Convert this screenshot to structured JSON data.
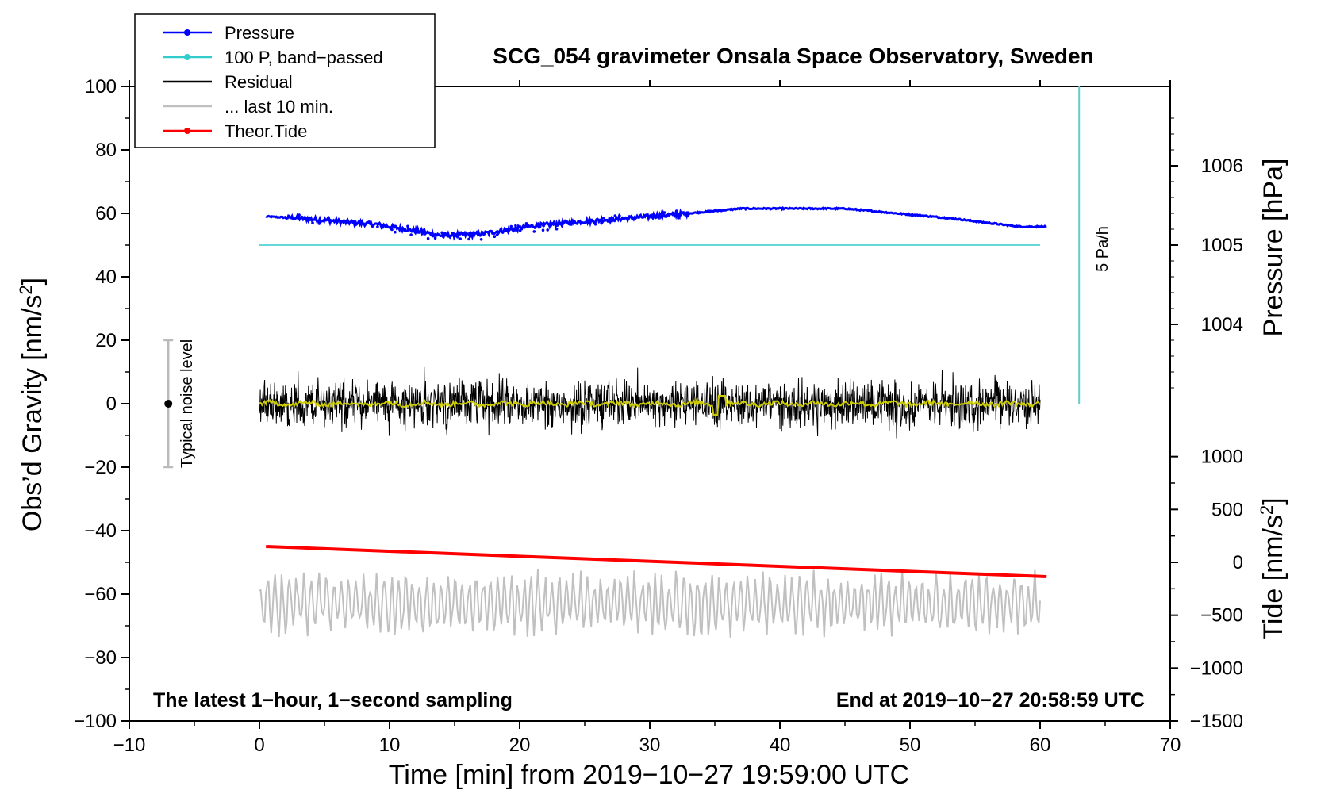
{
  "chart_data": {
    "type": "line",
    "title": "SCG_054 gravimeter Onsala Space Observatory, Sweden",
    "xlabel": "Time [min] from 2019−10−27 19:59:00 UTC",
    "ylabel_main": "Obs’d Gravity [nm/s",
    "ylabel_main_sup": "2",
    "ylabel_main_end": "]",
    "ylabel_pressure": "Pressure [hPa]",
    "ylabel_tide": "Tide [nm/s",
    "ylabel_tide_sup": "2",
    "ylabel_tide_end": "]",
    "xlim": [
      -10,
      70
    ],
    "ylim": [
      -100,
      100
    ],
    "x_ticks": [
      "−10",
      "0",
      "10",
      "20",
      "30",
      "40",
      "50",
      "60",
      "70"
    ],
    "x_tick_values": [
      -10,
      0,
      10,
      20,
      30,
      40,
      50,
      60,
      70
    ],
    "y_ticks": [
      "100",
      "80",
      "60",
      "40",
      "20",
      "0",
      "−20",
      "−40",
      "−60",
      "−80",
      "−100"
    ],
    "y_tick_values": [
      100,
      80,
      60,
      40,
      20,
      0,
      -20,
      -40,
      -60,
      -80,
      -100
    ],
    "pressure_ticks": [
      "1006",
      "1005",
      "1004"
    ],
    "pressure_tick_values": [
      1006,
      1005,
      1004
    ],
    "tide_ticks": [
      "1000",
      "500",
      "0",
      "−500",
      "−1000",
      "−1500"
    ],
    "tide_tick_values": [
      1000,
      500,
      0,
      -500,
      -1000,
      -1500
    ],
    "pressure_axis_map": {
      "value_a": 1005,
      "gravity_a": 50,
      "value_b": 1006,
      "gravity_b": 75
    },
    "tide_axis_map": {
      "value_a": 0,
      "gravity_a": -50,
      "value_b": -1500,
      "gravity_b": -100
    },
    "legend": [
      {
        "label": "Pressure",
        "color": "#0000ff",
        "marker": true
      },
      {
        "label": "100 P, band−passed",
        "color": "#33cccc",
        "marker": true
      },
      {
        "label": "Residual",
        "color": "#000000",
        "marker": false
      },
      {
        "label": "... last 10 min.",
        "color": "#c0c0c0",
        "marker": false
      },
      {
        "label": "Theor.Tide",
        "color": "#ff0000",
        "marker": true
      }
    ],
    "series": [
      {
        "name": "Pressure",
        "color": "#0000ff",
        "axis": "gravity",
        "x": [
          0.5,
          3,
          6,
          9,
          12,
          14,
          17,
          21,
          25,
          30,
          33,
          37,
          41,
          45,
          49,
          53,
          57,
          58.5,
          60.5
        ],
        "values": [
          59,
          58.5,
          57.5,
          56.5,
          54.5,
          53,
          53.5,
          56,
          57.5,
          59,
          60,
          61.5,
          61.5,
          61.5,
          60,
          58.5,
          56.5,
          55.8,
          55.8
        ]
      },
      {
        "name": "100 P, band−passed",
        "color": "#33cccc",
        "axis": "gravity",
        "x": [
          0,
          60
        ],
        "values": [
          50,
          50
        ]
      },
      {
        "name": "Residual",
        "color": "#000000",
        "axis": "gravity",
        "x_start": 0,
        "x_end": 60,
        "amplitude": 8
      },
      {
        "name": "Residual smoothed",
        "color": "#cccc00",
        "axis": "gravity",
        "x_start": 0,
        "x_end": 60,
        "amplitude": 1
      },
      {
        "name": "... last 10 min.",
        "color": "#c0c0c0",
        "axis": "gravity",
        "x_start": 0,
        "x_end": 60,
        "center": -63,
        "amplitude": 9
      },
      {
        "name": "Theor.Tide",
        "color": "#ff0000",
        "axis": "gravity",
        "x": [
          0.5,
          60.5
        ],
        "values": [
          -45,
          -54.5
        ]
      }
    ],
    "pa_marker": {
      "label": "5 Pa/h",
      "x": 63,
      "y_from": 0,
      "y_to": 100
    },
    "noise_marker": {
      "label": "Typical noise level",
      "x": -7,
      "center": 0,
      "low": -20,
      "high": 20
    },
    "annotation_left": "The latest 1−hour, 1−second sampling",
    "annotation_right": "End at 2019−10−27 20:58:59 UTC"
  }
}
